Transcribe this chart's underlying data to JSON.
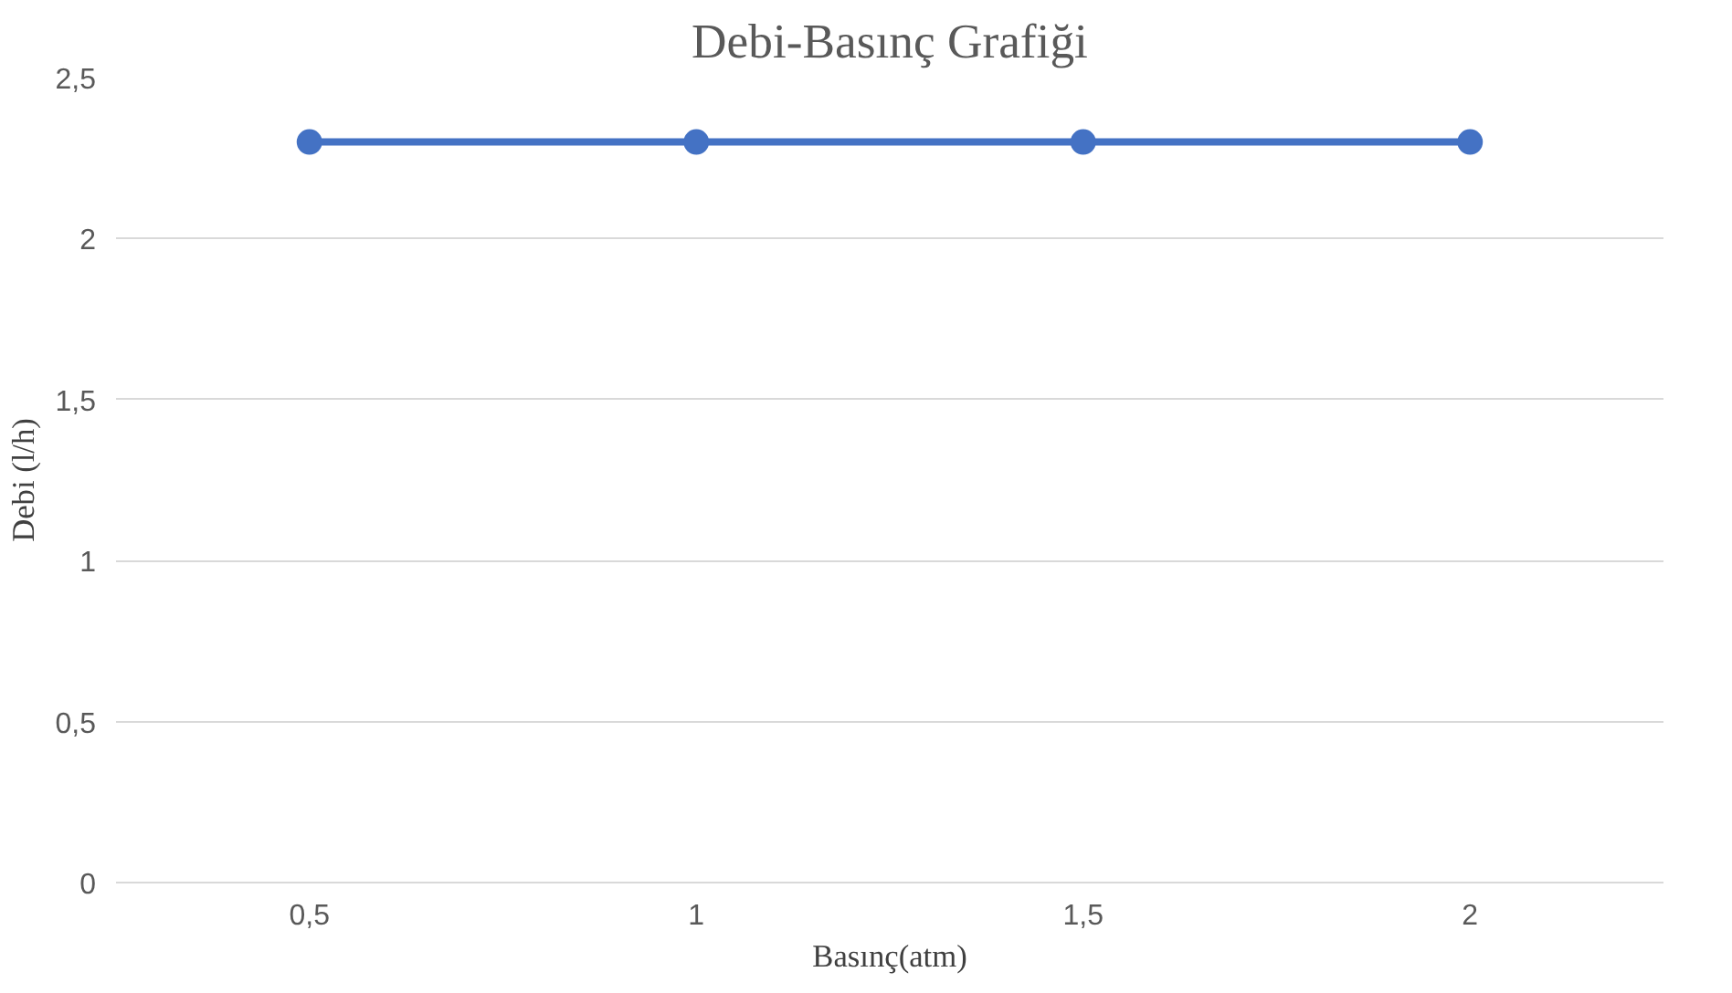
{
  "chart_data": {
    "type": "line",
    "title": "Debi-Basınç Grafiği",
    "xlabel": "Basınç(atm)",
    "ylabel": "Debi (l/h)",
    "categories": [
      "0,5",
      "1",
      "1,5",
      "2"
    ],
    "series": [
      {
        "color": "#4472c4",
        "values": [
          2.3,
          2.3,
          2.3,
          2.3
        ]
      }
    ],
    "ylim": [
      0,
      2.5
    ],
    "yticks": [
      0,
      {
        "value": 0.5,
        "label": "0,5"
      },
      1,
      {
        "value": 1.5,
        "label": "1,5"
      },
      2,
      {
        "value": 2.5,
        "label": "2,5"
      }
    ],
    "grid": "y",
    "marker": "circle",
    "line_style": "solid"
  }
}
